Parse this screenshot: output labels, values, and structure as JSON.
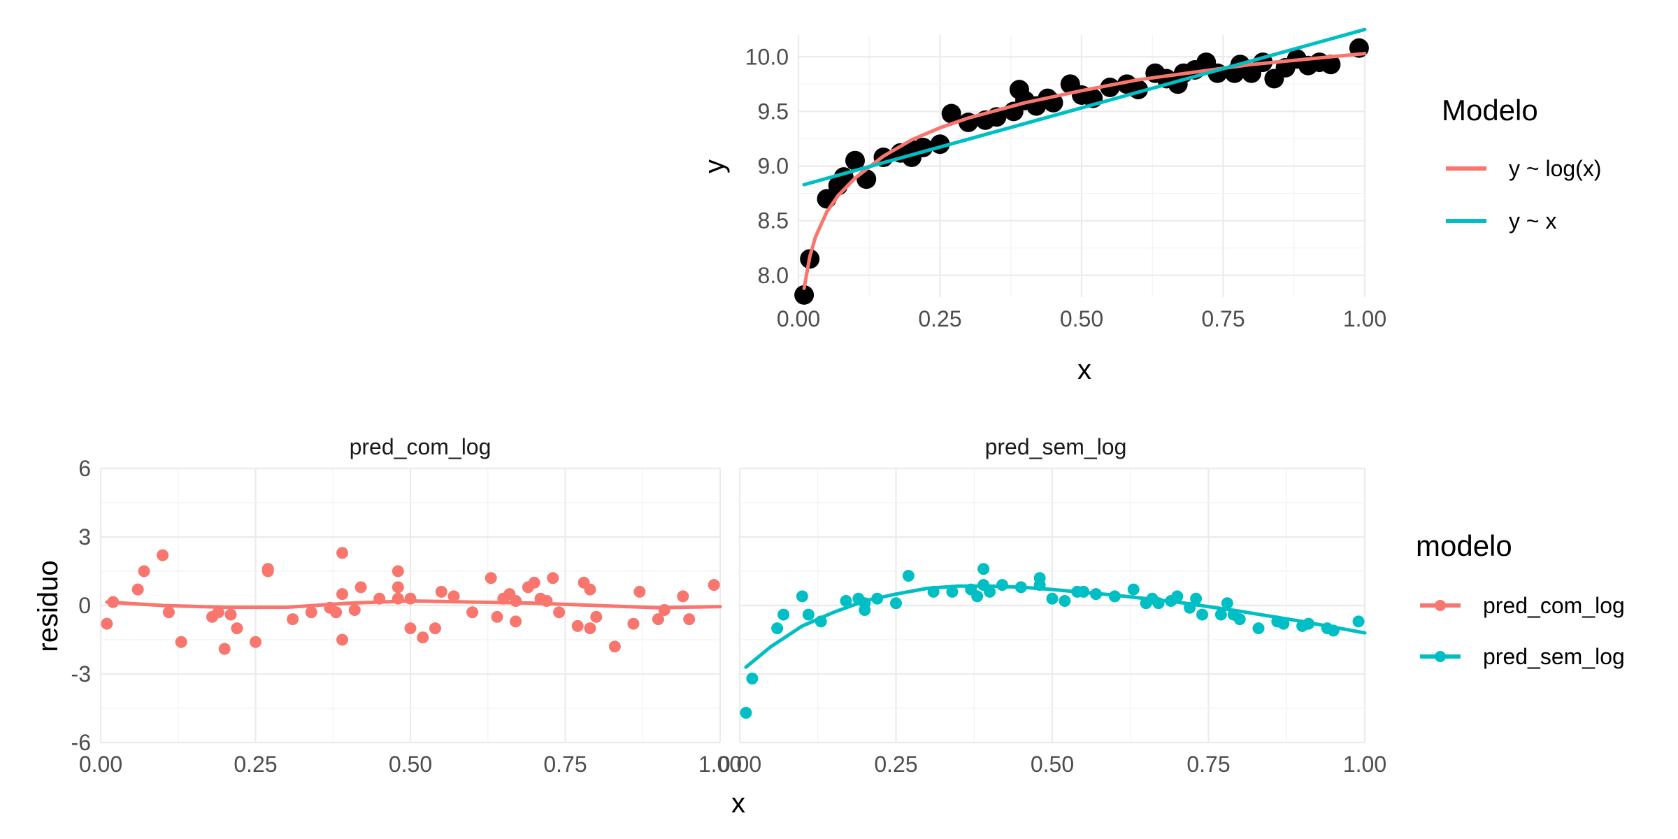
{
  "colors": {
    "log": "#F8766D",
    "lin": "#00BFC4",
    "points": "#000000"
  },
  "chart_data": [
    {
      "type": "scatter",
      "xlabel": "x",
      "ylabel": "y",
      "xlim": [
        0,
        1
      ],
      "ylim": [
        7.8,
        10.2
      ],
      "xticks": [
        "0.00",
        "0.25",
        "0.50",
        "0.75",
        "1.00"
      ],
      "yticks": [
        "8.0",
        "8.5",
        "9.0",
        "9.5",
        "10.0"
      ],
      "legend": {
        "title": "Modelo",
        "position": "right",
        "entries": [
          "y ~ log(x)",
          "y ~ x"
        ]
      },
      "points": [
        [
          0.01,
          7.82
        ],
        [
          0.02,
          8.15
        ],
        [
          0.05,
          8.7
        ],
        [
          0.07,
          8.82
        ],
        [
          0.08,
          8.9
        ],
        [
          0.1,
          9.05
        ],
        [
          0.12,
          8.88
        ],
        [
          0.15,
          9.08
        ],
        [
          0.18,
          9.12
        ],
        [
          0.2,
          9.15
        ],
        [
          0.2,
          9.08
        ],
        [
          0.22,
          9.17
        ],
        [
          0.25,
          9.2
        ],
        [
          0.27,
          9.48
        ],
        [
          0.3,
          9.4
        ],
        [
          0.33,
          9.42
        ],
        [
          0.35,
          9.45
        ],
        [
          0.38,
          9.5
        ],
        [
          0.39,
          9.7
        ],
        [
          0.4,
          9.6
        ],
        [
          0.42,
          9.55
        ],
        [
          0.44,
          9.62
        ],
        [
          0.45,
          9.58
        ],
        [
          0.48,
          9.75
        ],
        [
          0.5,
          9.65
        ],
        [
          0.52,
          9.62
        ],
        [
          0.55,
          9.72
        ],
        [
          0.58,
          9.75
        ],
        [
          0.6,
          9.7
        ],
        [
          0.63,
          9.85
        ],
        [
          0.65,
          9.8
        ],
        [
          0.67,
          9.75
        ],
        [
          0.68,
          9.85
        ],
        [
          0.7,
          9.88
        ],
        [
          0.72,
          9.95
        ],
        [
          0.74,
          9.85
        ],
        [
          0.77,
          9.85
        ],
        [
          0.78,
          9.93
        ],
        [
          0.8,
          9.85
        ],
        [
          0.82,
          9.95
        ],
        [
          0.84,
          9.8
        ],
        [
          0.86,
          9.9
        ],
        [
          0.88,
          9.98
        ],
        [
          0.9,
          9.92
        ],
        [
          0.92,
          9.95
        ],
        [
          0.94,
          9.93
        ],
        [
          0.99,
          10.08
        ]
      ],
      "series": [
        {
          "name": "y ~ log(x)",
          "x": [
            0.01,
            0.02,
            0.03,
            0.05,
            0.07,
            0.1,
            0.15,
            0.2,
            0.25,
            0.3,
            0.4,
            0.5,
            0.6,
            0.7,
            0.8,
            0.9,
            1.0
          ],
          "y": [
            7.88,
            8.17,
            8.35,
            8.58,
            8.73,
            8.89,
            9.09,
            9.24,
            9.35,
            9.44,
            9.58,
            9.69,
            9.79,
            9.86,
            9.93,
            9.98,
            10.03
          ]
        },
        {
          "name": "y ~ x",
          "x": [
            0.01,
            1.0
          ],
          "y": [
            8.83,
            10.25
          ]
        }
      ]
    },
    {
      "type": "scatter",
      "panel": "pred_com_log",
      "xlabel": "x",
      "ylabel": "residuo",
      "xlim": [
        0,
        1
      ],
      "ylim": [
        -6,
        6
      ],
      "xticks": [
        "0.00",
        "0.25",
        "0.50",
        "0.75",
        "1.00"
      ],
      "yticks": [
        "-6",
        "-3",
        "0",
        "3",
        "6"
      ],
      "points": [
        [
          0.01,
          -0.8
        ],
        [
          0.02,
          0.15
        ],
        [
          0.06,
          0.7
        ],
        [
          0.07,
          1.5
        ],
        [
          0.1,
          2.2
        ],
        [
          0.11,
          -0.3
        ],
        [
          0.13,
          -1.6
        ],
        [
          0.18,
          -0.5
        ],
        [
          0.19,
          -0.3
        ],
        [
          0.2,
          -1.9
        ],
        [
          0.21,
          -0.4
        ],
        [
          0.22,
          -1.0
        ],
        [
          0.25,
          -1.6
        ],
        [
          0.27,
          1.6
        ],
        [
          0.27,
          1.5
        ],
        [
          0.31,
          -0.6
        ],
        [
          0.34,
          -0.3
        ],
        [
          0.37,
          -0.1
        ],
        [
          0.38,
          -0.3
        ],
        [
          0.39,
          0.5
        ],
        [
          0.39,
          -1.5
        ],
        [
          0.39,
          2.3
        ],
        [
          0.41,
          -0.2
        ],
        [
          0.42,
          0.8
        ],
        [
          0.45,
          0.3
        ],
        [
          0.48,
          0.8
        ],
        [
          0.48,
          1.5
        ],
        [
          0.48,
          0.3
        ],
        [
          0.5,
          -1.0
        ],
        [
          0.5,
          0.3
        ],
        [
          0.52,
          -1.4
        ],
        [
          0.54,
          -1.0
        ],
        [
          0.55,
          0.6
        ],
        [
          0.57,
          0.4
        ],
        [
          0.6,
          -0.3
        ],
        [
          0.63,
          1.2
        ],
        [
          0.64,
          -0.5
        ],
        [
          0.65,
          0.3
        ],
        [
          0.66,
          0.5
        ],
        [
          0.67,
          -0.7
        ],
        [
          0.67,
          0.2
        ],
        [
          0.69,
          0.8
        ],
        [
          0.7,
          1.0
        ],
        [
          0.71,
          0.3
        ],
        [
          0.72,
          0.2
        ],
        [
          0.73,
          1.2
        ],
        [
          0.74,
          -0.3
        ],
        [
          0.77,
          -0.9
        ],
        [
          0.78,
          1.0
        ],
        [
          0.79,
          0.7
        ],
        [
          0.79,
          -1.0
        ],
        [
          0.8,
          -0.5
        ],
        [
          0.83,
          -1.8
        ],
        [
          0.86,
          -0.8
        ],
        [
          0.87,
          0.6
        ],
        [
          0.9,
          -0.6
        ],
        [
          0.91,
          -0.2
        ],
        [
          0.94,
          0.4
        ],
        [
          0.95,
          -0.6
        ],
        [
          0.99,
          0.9
        ]
      ],
      "series": [
        {
          "name": "pred_com_log",
          "x": [
            0.01,
            0.1,
            0.2,
            0.3,
            0.4,
            0.5,
            0.6,
            0.7,
            0.8,
            0.9,
            1.0
          ],
          "y": [
            0.15,
            0.0,
            -0.08,
            -0.08,
            0.1,
            0.2,
            0.15,
            0.1,
            0.0,
            -0.1,
            -0.05
          ]
        }
      ]
    },
    {
      "type": "scatter",
      "panel": "pred_sem_log",
      "xlabel": "x",
      "ylabel": "residuo",
      "xlim": [
        0,
        1
      ],
      "ylim": [
        -6,
        6
      ],
      "xticks": [
        "0.00",
        "0.25",
        "0.50",
        "0.75",
        "1.00"
      ],
      "legend": {
        "title": "modelo",
        "position": "right",
        "entries": [
          "pred_com_log",
          "pred_sem_log"
        ]
      },
      "points": [
        [
          0.01,
          -4.7
        ],
        [
          0.02,
          -3.2
        ],
        [
          0.06,
          -1.0
        ],
        [
          0.07,
          -0.4
        ],
        [
          0.1,
          0.4
        ],
        [
          0.11,
          -0.4
        ],
        [
          0.13,
          -0.7
        ],
        [
          0.17,
          0.2
        ],
        [
          0.19,
          0.3
        ],
        [
          0.2,
          -0.2
        ],
        [
          0.2,
          0.1
        ],
        [
          0.22,
          0.3
        ],
        [
          0.25,
          0.1
        ],
        [
          0.27,
          1.3
        ],
        [
          0.31,
          0.6
        ],
        [
          0.34,
          0.6
        ],
        [
          0.37,
          0.7
        ],
        [
          0.38,
          0.4
        ],
        [
          0.39,
          1.6
        ],
        [
          0.39,
          0.9
        ],
        [
          0.4,
          0.6
        ],
        [
          0.42,
          0.9
        ],
        [
          0.45,
          0.8
        ],
        [
          0.48,
          0.9
        ],
        [
          0.48,
          1.2
        ],
        [
          0.5,
          0.3
        ],
        [
          0.52,
          0.2
        ],
        [
          0.54,
          0.6
        ],
        [
          0.55,
          0.6
        ],
        [
          0.57,
          0.5
        ],
        [
          0.6,
          0.4
        ],
        [
          0.63,
          0.7
        ],
        [
          0.65,
          0.1
        ],
        [
          0.66,
          0.3
        ],
        [
          0.67,
          0.1
        ],
        [
          0.69,
          0.2
        ],
        [
          0.7,
          0.4
        ],
        [
          0.72,
          -0.1
        ],
        [
          0.73,
          0.3
        ],
        [
          0.74,
          -0.4
        ],
        [
          0.77,
          -0.4
        ],
        [
          0.78,
          0.1
        ],
        [
          0.79,
          -0.4
        ],
        [
          0.8,
          -0.6
        ],
        [
          0.83,
          -1.0
        ],
        [
          0.86,
          -0.7
        ],
        [
          0.87,
          -0.8
        ],
        [
          0.9,
          -0.9
        ],
        [
          0.91,
          -0.8
        ],
        [
          0.94,
          -1.0
        ],
        [
          0.95,
          -1.1
        ],
        [
          0.99,
          -0.7
        ]
      ],
      "series": [
        {
          "name": "pred_sem_log",
          "x": [
            0.01,
            0.05,
            0.1,
            0.15,
            0.2,
            0.25,
            0.3,
            0.35,
            0.4,
            0.45,
            0.5,
            0.6,
            0.7,
            0.8,
            0.9,
            1.0
          ],
          "y": [
            -2.7,
            -1.8,
            -0.9,
            -0.3,
            0.2,
            0.5,
            0.75,
            0.85,
            0.85,
            0.8,
            0.7,
            0.45,
            0.15,
            -0.25,
            -0.7,
            -1.2
          ]
        }
      ]
    }
  ]
}
